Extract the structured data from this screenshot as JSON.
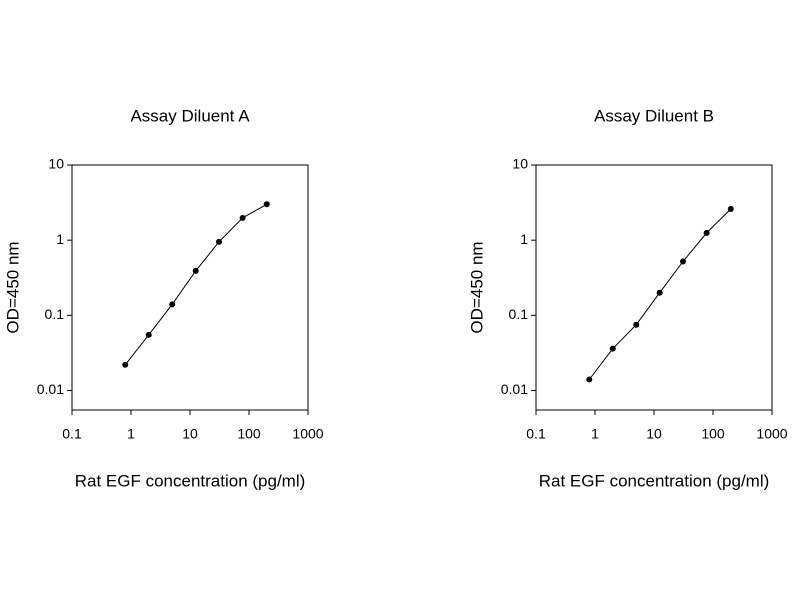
{
  "chart_data": [
    {
      "type": "line",
      "title": "Assay Diluent A",
      "xlabel": "Rat EGF concentration (pg/ml)",
      "ylabel": "OD=450 nm",
      "xscale": "log",
      "yscale": "log",
      "marker": "circle",
      "color": "#000000",
      "x": [
        0.8,
        2,
        5,
        12.5,
        31,
        78,
        200
      ],
      "values": [
        0.022,
        0.055,
        0.14,
        0.39,
        0.95,
        1.98,
        3.0
      ],
      "xlim": [
        0.1,
        1000
      ],
      "ylim": [
        0.0055,
        10
      ],
      "xticks": [
        0.1,
        1,
        10,
        100,
        1000
      ],
      "yticks": [
        0.01,
        0.1,
        1,
        10
      ]
    },
    {
      "type": "line",
      "title": "Assay Diluent B",
      "xlabel": "Rat EGF concentration (pg/ml)",
      "ylabel": "OD=450 nm",
      "xscale": "log",
      "yscale": "log",
      "marker": "circle",
      "color": "#000000",
      "x": [
        0.8,
        2,
        5,
        12.5,
        31,
        78,
        200
      ],
      "values": [
        0.014,
        0.036,
        0.075,
        0.2,
        0.52,
        1.25,
        2.6
      ],
      "xlim": [
        0.1,
        1000
      ],
      "ylim": [
        0.0055,
        10
      ],
      "xticks": [
        0.1,
        1,
        10,
        100,
        1000
      ],
      "yticks": [
        0.01,
        0.1,
        1,
        10
      ]
    }
  ]
}
